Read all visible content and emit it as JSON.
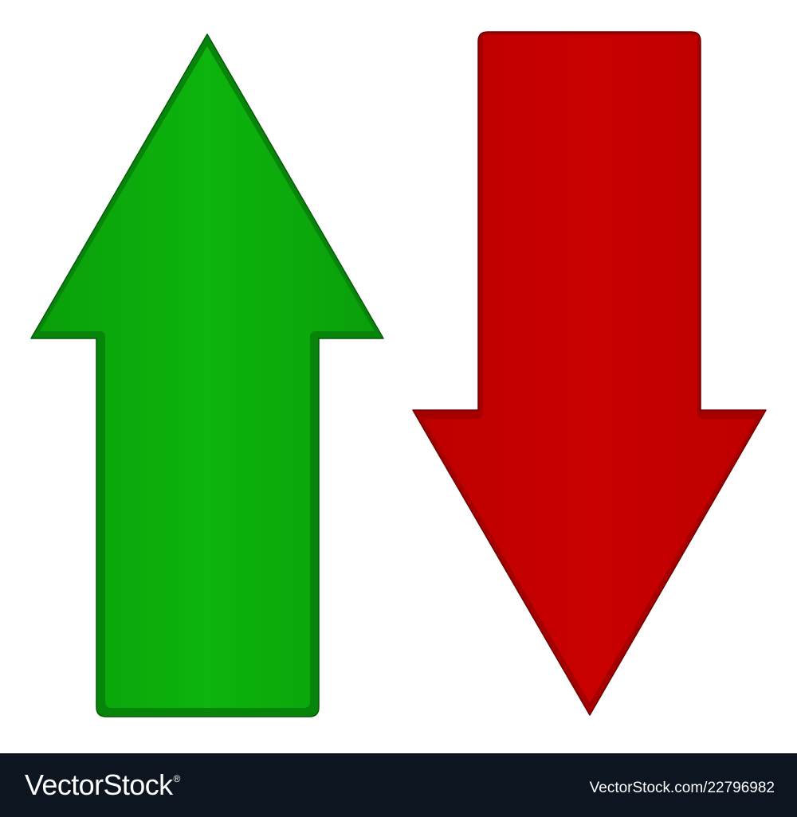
{
  "arrows": {
    "up": {
      "direction": "up",
      "fill": "#0aae0a",
      "edge": "#07850a",
      "outline": "#045a06"
    },
    "down": {
      "direction": "down",
      "fill": "#c40000",
      "edge": "#a50000",
      "outline": "#6e0000"
    }
  },
  "footer": {
    "background": "#0d1521",
    "logo_text": "VectorStock",
    "logo_mark": "®",
    "image_id": "VectorStock.com/22796982"
  }
}
